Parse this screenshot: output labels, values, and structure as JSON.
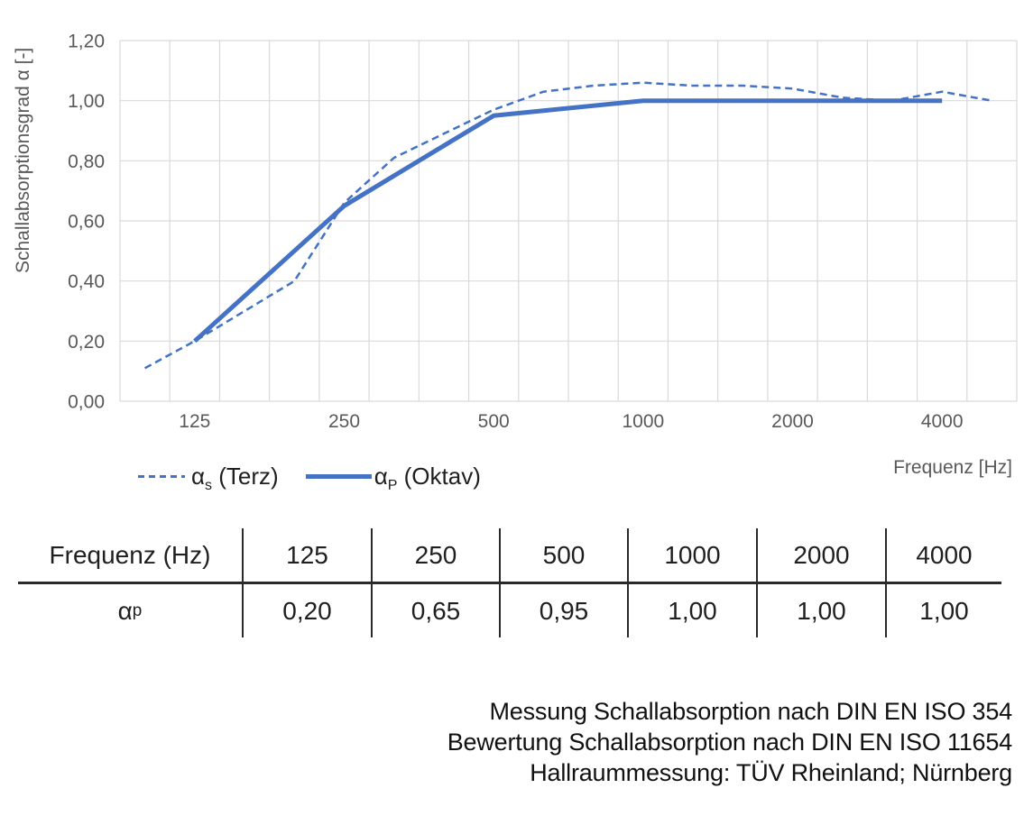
{
  "colors": {
    "accent_blue": "#4472C4",
    "gridline": "#D9D9D9",
    "axis_label": "#595959",
    "text": "#1F1F1F"
  },
  "chart_data": {
    "type": "line",
    "title": "",
    "xlabel": "Frequenz [Hz]",
    "ylabel": "Schallabsorptionsgrad α [-]",
    "x_scale": "third-octave category axis",
    "categories": [
      100,
      125,
      160,
      200,
      250,
      315,
      400,
      500,
      630,
      800,
      1000,
      1250,
      1600,
      2000,
      2500,
      3150,
      4000,
      5000
    ],
    "x_tick_labels_shown": [
      125,
      250,
      500,
      1000,
      2000,
      4000
    ],
    "y_ticks": [
      0,
      0.2,
      0.4,
      0.6,
      0.8,
      1.0,
      1.2
    ],
    "y_tick_labels": [
      "0,00",
      "0,20",
      "0,40",
      "0,60",
      "0,80",
      "1,00",
      "1,20"
    ],
    "ylim": [
      0,
      1.2
    ],
    "grid": true,
    "legend_position": "bottom-left",
    "series": [
      {
        "name": "αs (Terz)",
        "symbol": "α",
        "sub": "s",
        "suffix": " (Terz)",
        "line_style": "dashed",
        "stroke_width": 2.5,
        "x": [
          100,
          125,
          160,
          200,
          250,
          315,
          400,
          500,
          630,
          800,
          1000,
          1250,
          1600,
          2000,
          2500,
          3150,
          4000,
          5000
        ],
        "values": [
          0.11,
          0.2,
          0.3,
          0.4,
          0.66,
          0.81,
          0.89,
          0.97,
          1.03,
          1.05,
          1.06,
          1.05,
          1.05,
          1.04,
          1.01,
          1.0,
          1.03,
          1.0
        ]
      },
      {
        "name": "αP (Oktav)",
        "symbol": "α",
        "sub": "P",
        "suffix": " (Oktav)",
        "line_style": "solid",
        "stroke_width": 5,
        "x": [
          125,
          250,
          500,
          1000,
          2000,
          4000
        ],
        "values": [
          0.2,
          0.65,
          0.95,
          1.0,
          1.0,
          1.0
        ]
      }
    ]
  },
  "table": {
    "header_label": "Frequenz (Hz)",
    "frequencies": [
      "125",
      "250",
      "500",
      "1000",
      "2000",
      "4000"
    ],
    "row_symbol": {
      "base": "α",
      "sub": "p"
    },
    "values": [
      "0,20",
      "0,65",
      "0,95",
      "1,00",
      "1,00",
      "1,00"
    ]
  },
  "footer": {
    "lines": [
      "Messung Schallabsorption nach DIN EN ISO 354",
      "Bewertung Schallabsorption nach DIN EN ISO 11654",
      "Hallraummessung: TÜV Rheinland; Nürnberg"
    ]
  }
}
